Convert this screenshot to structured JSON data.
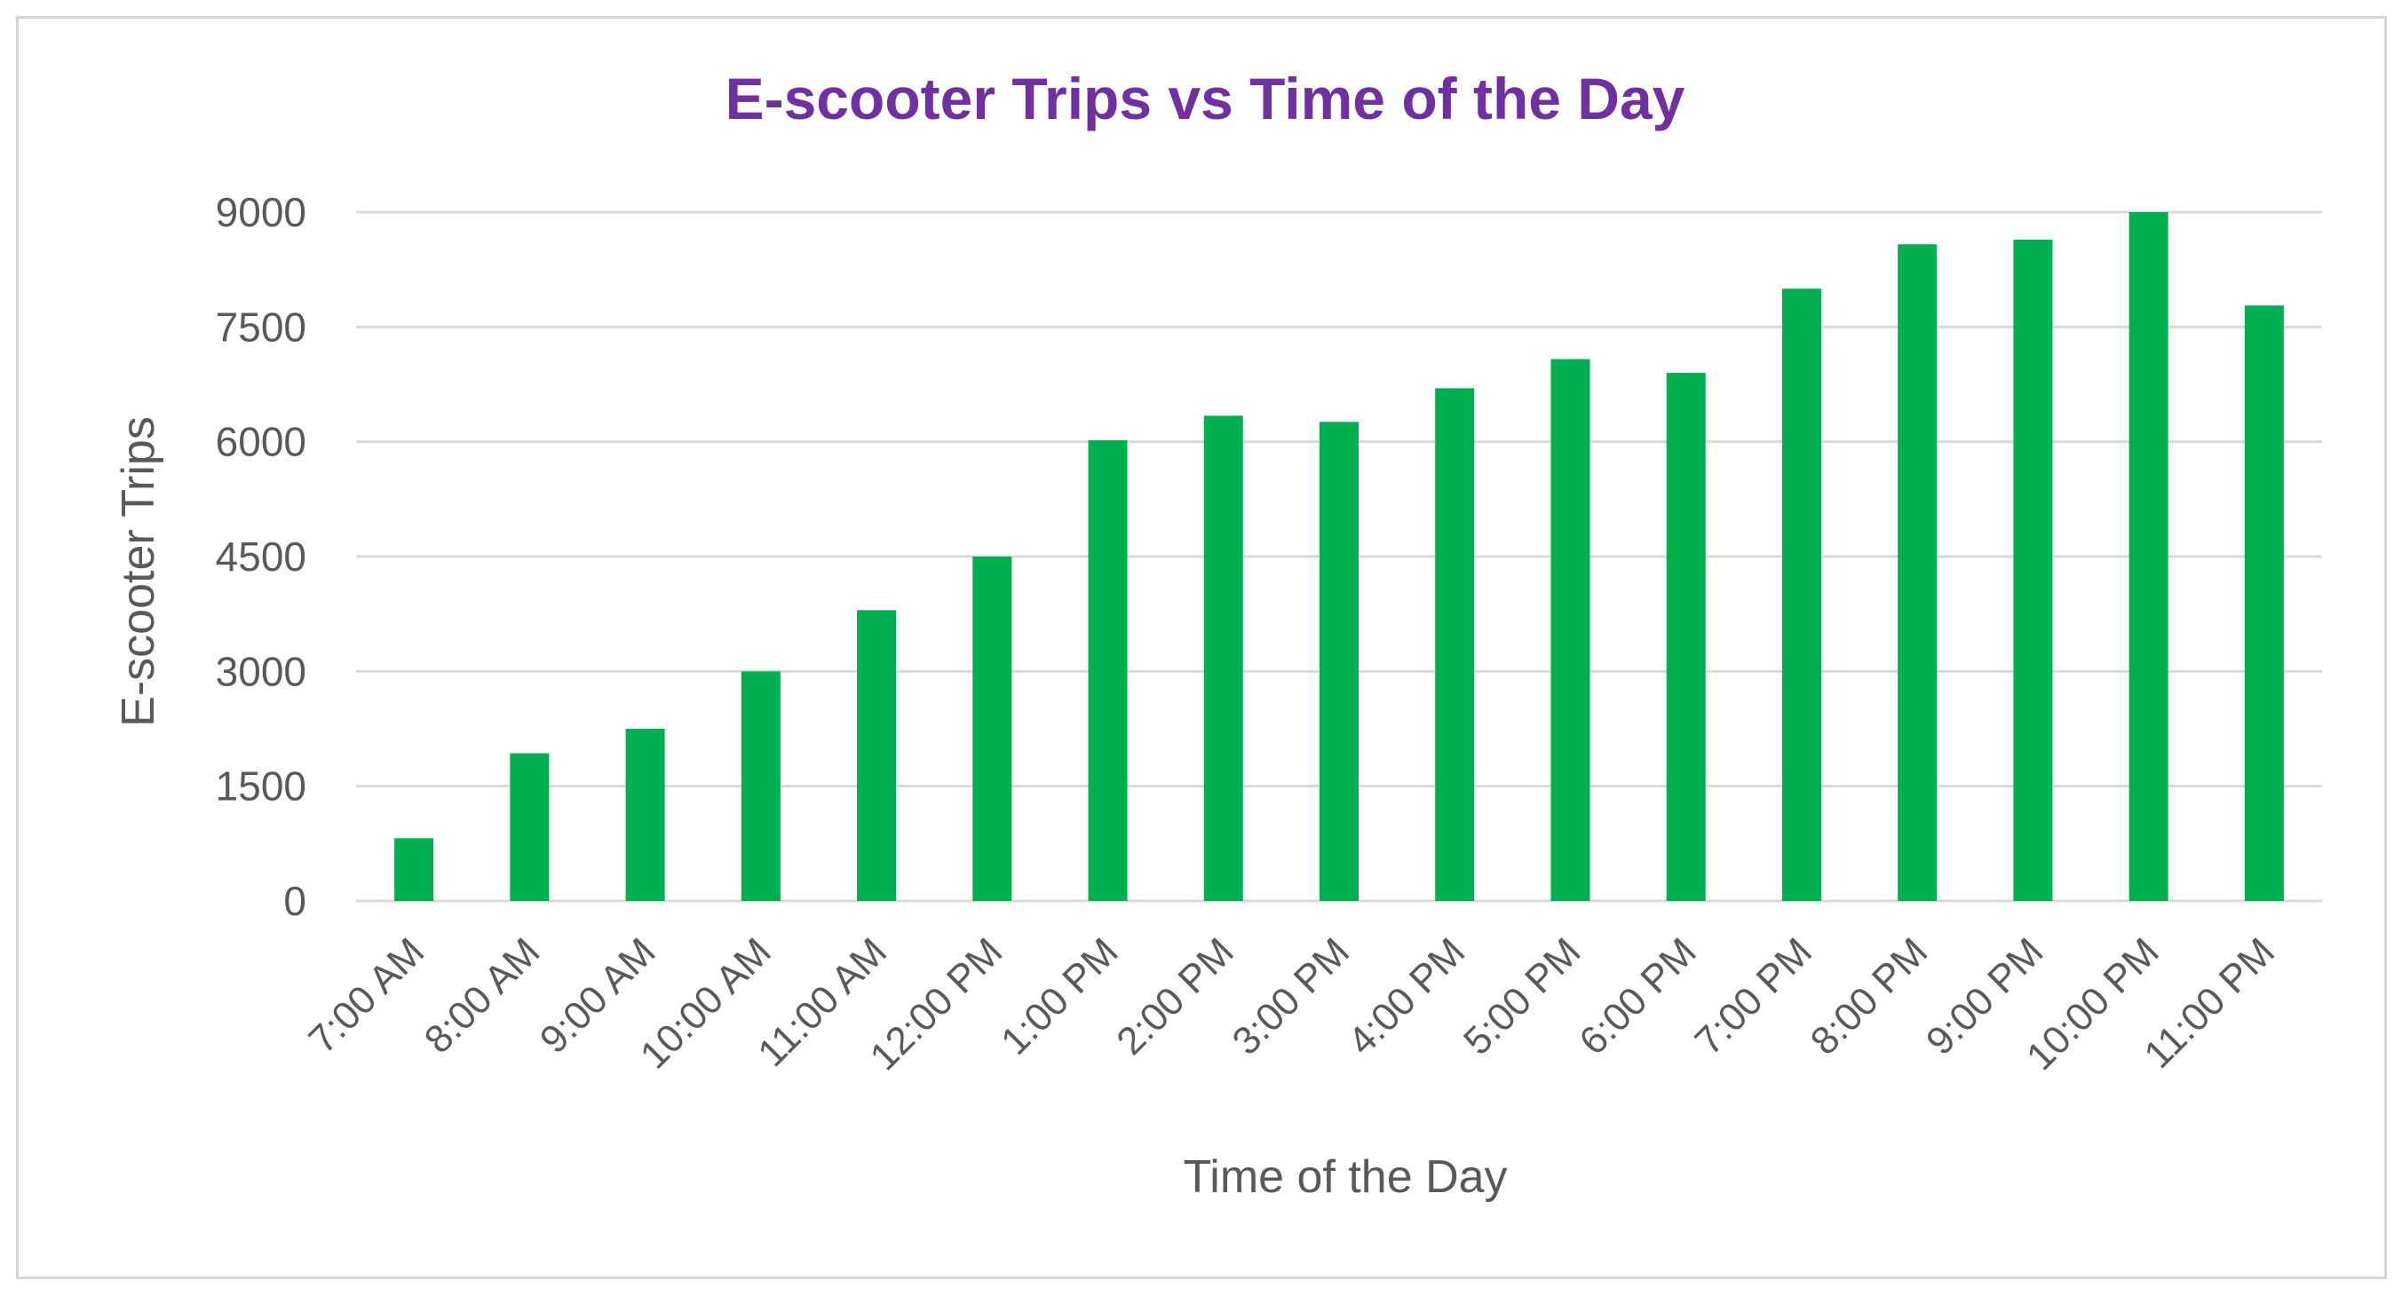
{
  "chart_data": {
    "type": "bar",
    "title": "E-scooter Trips vs Time of the Day",
    "xlabel": "Time of the Day",
    "ylabel": "E-scooter Trips",
    "categories": [
      "7:00 AM",
      "8:00 AM",
      "9:00 AM",
      "10:00 AM",
      "11:00 AM",
      "12:00 PM",
      "1:00 PM",
      "2:00 PM",
      "3:00 PM",
      "4:00 PM",
      "5:00 PM",
      "6:00 PM",
      "7:00 PM",
      "8:00 PM",
      "9:00 PM",
      "10:00 PM",
      "11:00 PM"
    ],
    "values": [
      820,
      1930,
      2250,
      3000,
      3800,
      4500,
      6020,
      6340,
      6260,
      6700,
      7080,
      6900,
      8000,
      8580,
      8640,
      9000,
      7780
    ],
    "ylim": [
      0,
      9000
    ],
    "yticks": [
      0,
      1500,
      3000,
      4500,
      6000,
      7500,
      9000
    ],
    "grid": true,
    "legend": "none",
    "bar_color": "#00b050",
    "title_color": "#7030a0"
  }
}
